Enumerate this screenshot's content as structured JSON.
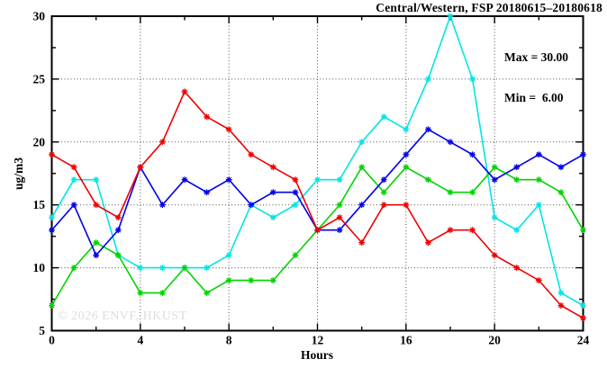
{
  "header": {
    "title": "Central/Western, FSP 20180615–20180618"
  },
  "annotations": {
    "max_label": "Max = 30.00",
    "min_label": "Min =  6.00"
  },
  "watermark": "© 2026 ENVF, HKUST",
  "chart_data": {
    "type": "line",
    "title": "Central/Western, FSP 20180615–20180618",
    "xlabel": "Hours",
    "ylabel": "ug/m3",
    "xlim": [
      0,
      24
    ],
    "ylim": [
      5,
      30
    ],
    "x_major_ticks": [
      0,
      4,
      8,
      12,
      16,
      20,
      24
    ],
    "x_minor_ticks": [
      2,
      6,
      10,
      14,
      18,
      22
    ],
    "y_major_ticks": [
      5,
      10,
      15,
      20,
      25,
      30
    ],
    "y_minor_ticks": [
      7.5,
      12.5,
      17.5,
      22.5,
      27.5
    ],
    "grid_x": [
      4,
      8,
      12,
      16,
      20
    ],
    "grid_y": [
      10,
      15,
      20,
      25
    ],
    "grid": true,
    "legend_position": "none",
    "marker": "star",
    "x": [
      0,
      1,
      2,
      3,
      4,
      5,
      6,
      7,
      8,
      9,
      10,
      11,
      12,
      13,
      14,
      15,
      16,
      17,
      18,
      19,
      20,
      21,
      22,
      23,
      24
    ],
    "series": [
      {
        "name": "cyan-series",
        "color": "#00e5e5",
        "values": [
          14,
          17,
          17,
          11,
          10,
          10,
          10,
          10,
          11,
          15,
          14,
          15,
          17,
          17,
          20,
          22,
          21,
          25,
          30,
          25,
          14,
          13,
          15,
          8,
          7
        ]
      },
      {
        "name": "green-series",
        "color": "#00d400",
        "values": [
          7,
          10,
          12,
          11,
          8,
          8,
          10,
          8,
          9,
          9,
          9,
          11,
          13,
          15,
          18,
          16,
          18,
          17,
          16,
          16,
          18,
          17,
          17,
          16,
          13
        ]
      },
      {
        "name": "blue-series",
        "color": "#0000ee",
        "values": [
          13,
          15,
          11,
          13,
          18,
          15,
          17,
          16,
          17,
          15,
          16,
          16,
          13,
          13,
          15,
          17,
          19,
          21,
          20,
          19,
          17,
          18,
          19,
          18,
          19
        ]
      },
      {
        "name": "red-series",
        "color": "#ee0000",
        "values": [
          19,
          18,
          15,
          14,
          18,
          20,
          24,
          22,
          21,
          19,
          18,
          17,
          13,
          14,
          12,
          15,
          15,
          12,
          13,
          13,
          11,
          10,
          9,
          7,
          6
        ]
      }
    ],
    "stats": {
      "max": "30.00",
      "min": "6.00"
    }
  }
}
